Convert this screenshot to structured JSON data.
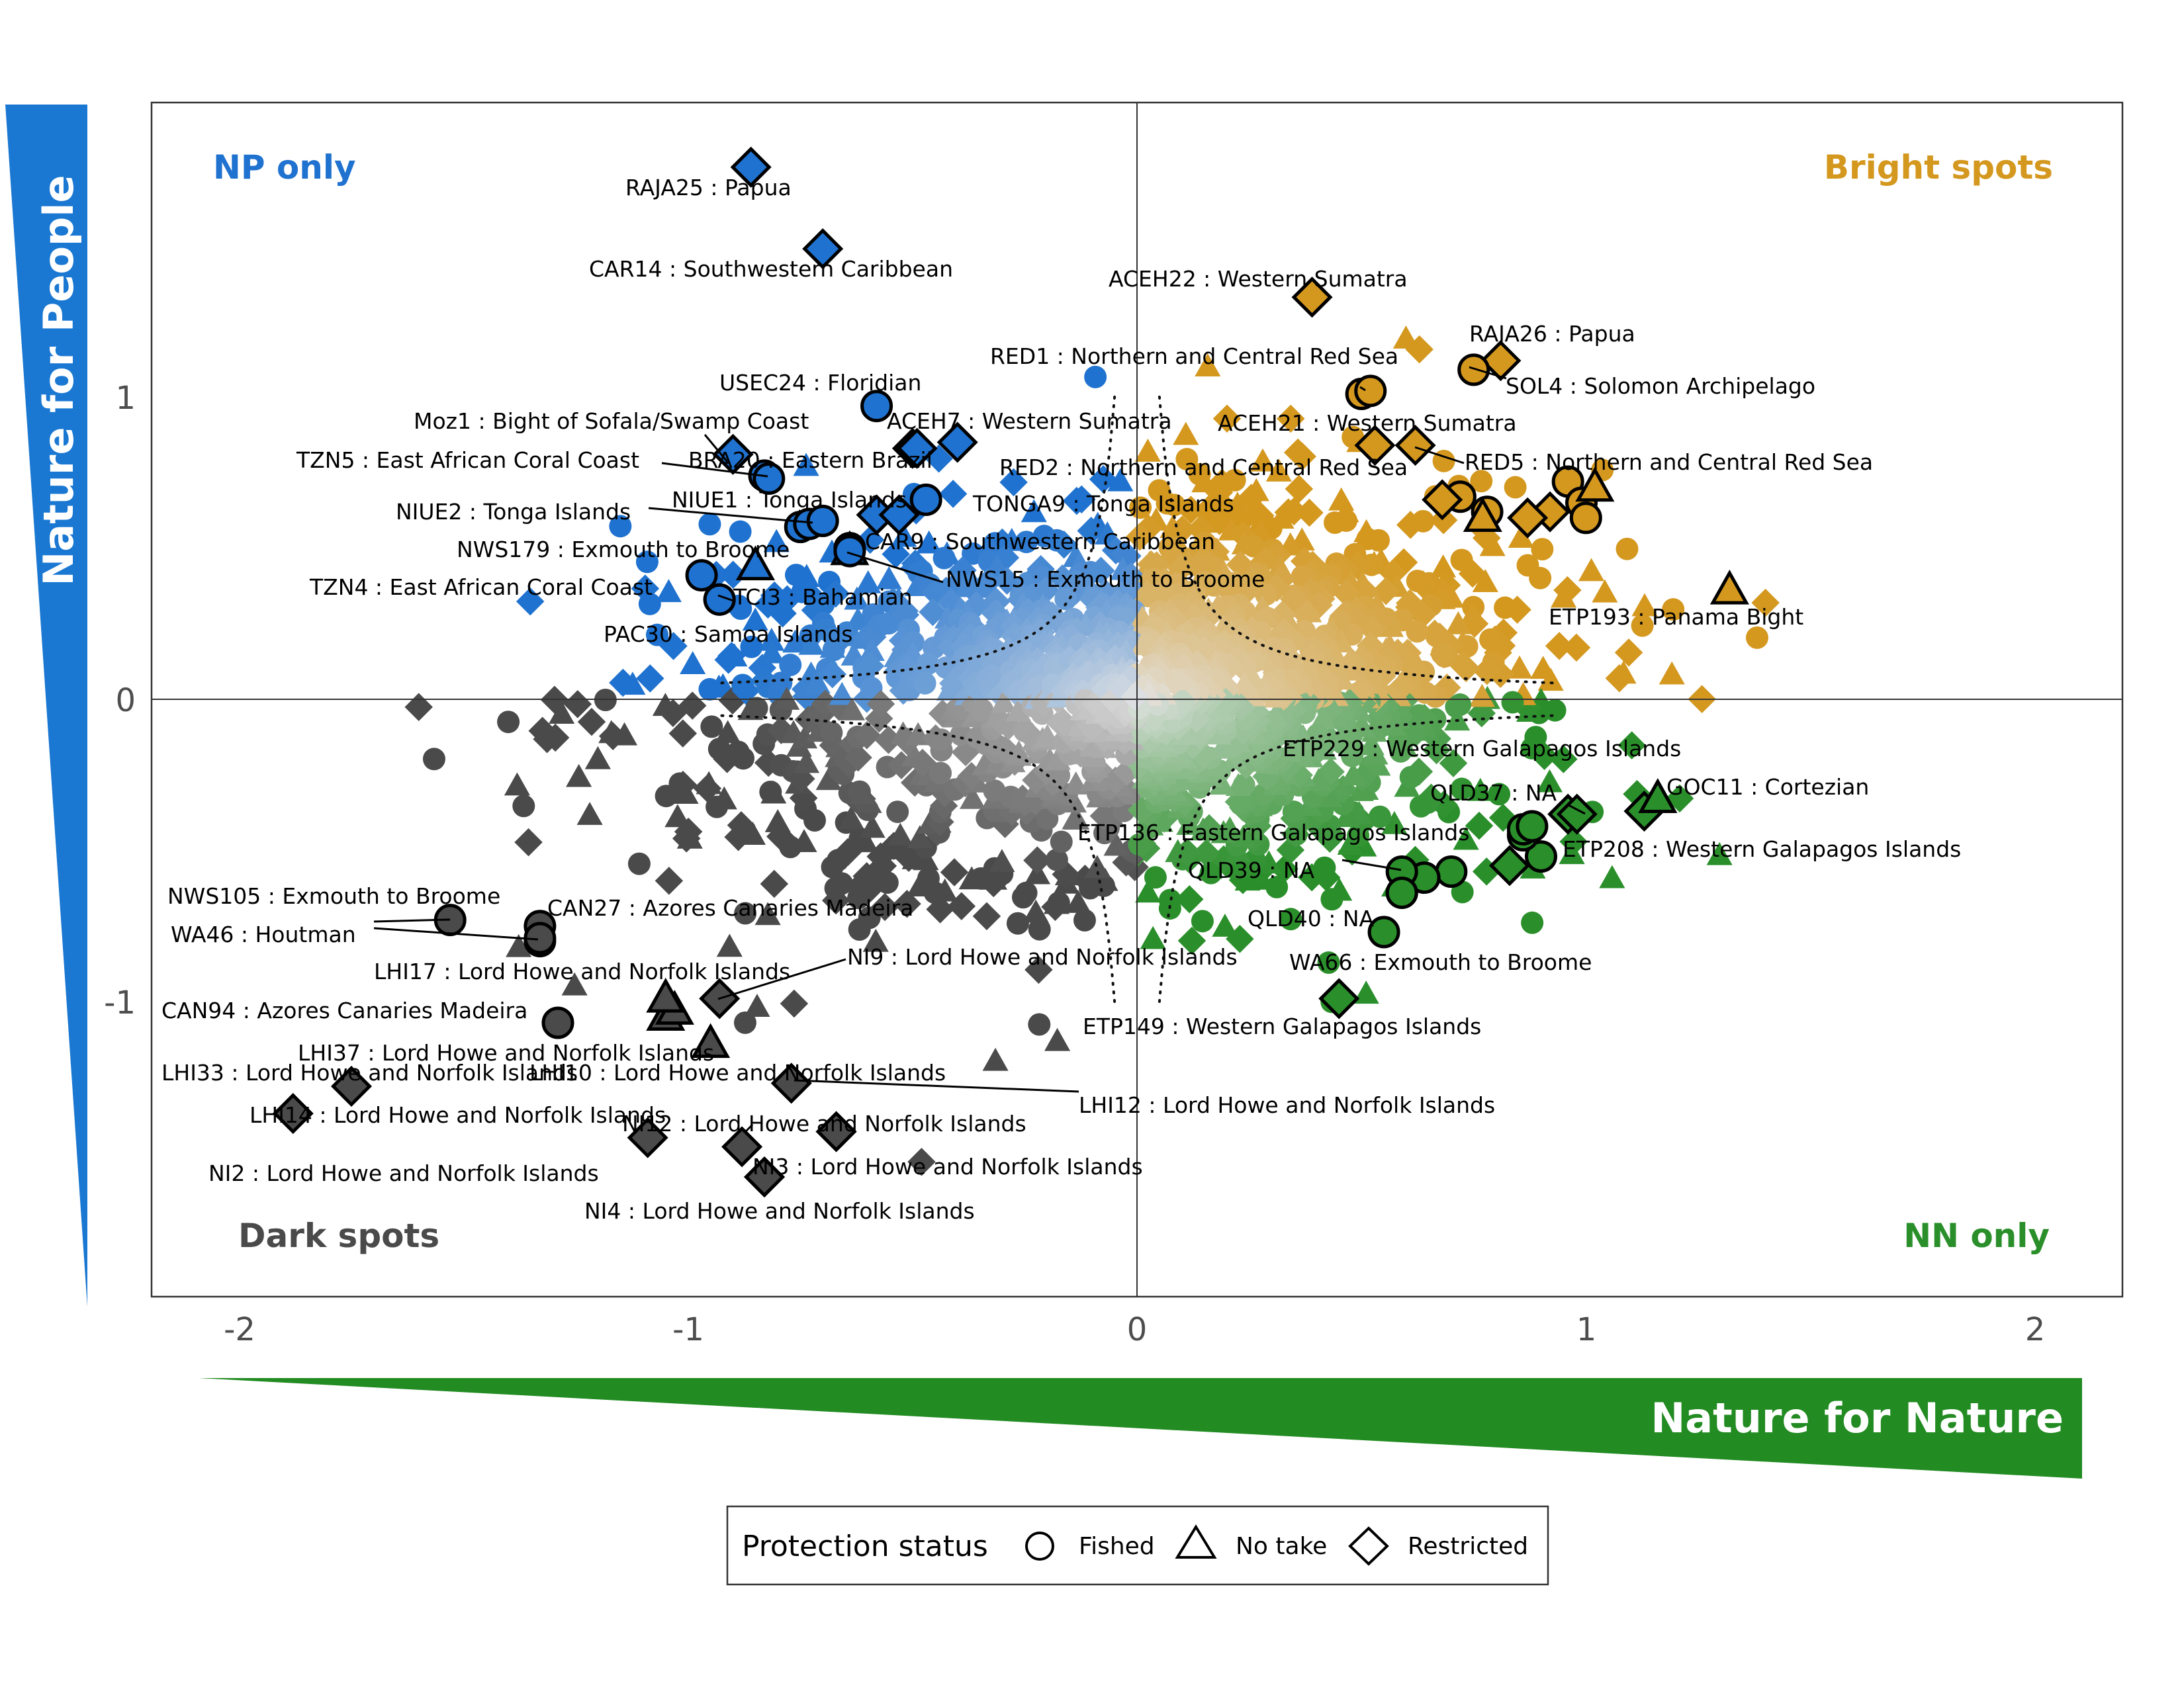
{
  "chart_data": {
    "type": "scatter",
    "title": "",
    "xlabel": "Nature for Nature",
    "ylabel": "Nature for People",
    "xlim": [
      -2.2,
      2.2
    ],
    "ylim": [
      -1.98,
      1.98
    ],
    "x_ticks": [
      "-2",
      "-1",
      "0",
      "1",
      "2"
    ],
    "y_ticks": [
      "1",
      "0",
      "-1"
    ],
    "grid": false,
    "colors": {
      "np_only": "#1f72cf",
      "bright_spots": "#d4981f",
      "dark_spots": "#4a4a4a",
      "nn_only": "#2a8f2a",
      "center": "#e3e3e3"
    },
    "quadrant_labels": {
      "np_only": "NP only",
      "bright_spots": "Bright spots",
      "dark_spots": "Dark spots",
      "nn_only": "NN only"
    },
    "legend": {
      "title": "Protection status",
      "position": "bottom",
      "items": [
        {
          "label": "Fished",
          "shape": "circle"
        },
        {
          "label": "No take",
          "shape": "triangle"
        },
        {
          "label": "Restricted",
          "shape": "diamond"
        }
      ]
    },
    "labeled_points": [
      {
        "label": "RAJA25 : Papua",
        "x": -0.86,
        "y": 1.76,
        "shape": "diamond"
      },
      {
        "label": "CAR14 : Southwestern Caribbean",
        "x": -0.7,
        "y": 1.49,
        "shape": "diamond"
      },
      {
        "label": "ACEH22 : Western Sumatra",
        "x": 0.39,
        "y": 1.33,
        "shape": "diamond"
      },
      {
        "label": "RED1 : Northern and Central Red Sea",
        "x": 0.52,
        "y": 1.02,
        "shape": "circle"
      },
      {
        "label": "RAJA26 : Papua",
        "x": 0.81,
        "y": 1.12,
        "shape": "diamond"
      },
      {
        "label": "SOL4 : Solomon Archipelago",
        "x": 0.75,
        "y": 1.09,
        "shape": "circle"
      },
      {
        "label": "USEC24 : Floridian",
        "x": -0.58,
        "y": 0.97,
        "shape": "circle"
      },
      {
        "label": "Moz1 : Bight of Sofala/Swamp Coast",
        "x": -0.9,
        "y": 0.81,
        "shape": "diamond"
      },
      {
        "label": "ACEH7 : Western Sumatra",
        "x": -0.4,
        "y": 0.85,
        "shape": "diamond"
      },
      {
        "label": "ACEH21 : Western Sumatra",
        "x": 0.53,
        "y": 0.84,
        "shape": "diamond"
      },
      {
        "label": "TZN5 : East African Coral Coast",
        "x": -0.82,
        "y": 0.73,
        "shape": "circle"
      },
      {
        "label": "BRA20 : Eastern Brazil",
        "x": -0.49,
        "y": 0.83,
        "shape": "diamond"
      },
      {
        "label": "RED5 : Northern and Central Red Sea",
        "x": 0.62,
        "y": 0.84,
        "shape": "diamond"
      },
      {
        "label": "RED2 : Northern and Central Red Sea",
        "x": 0.77,
        "y": 0.6,
        "shape": "triangle"
      },
      {
        "label": "NIUE1 : Tonga Islands",
        "x": -0.47,
        "y": 0.66,
        "shape": "circle"
      },
      {
        "label": "TONGA9 : Tonga Islands",
        "x": -0.53,
        "y": 0.61,
        "shape": "diamond"
      },
      {
        "label": "NIUE2 : Tonga Islands",
        "x": -0.7,
        "y": 0.59,
        "shape": "circle"
      },
      {
        "label": "NWS179 : Exmouth to Broome",
        "x": -0.85,
        "y": 0.44,
        "shape": "triangle"
      },
      {
        "label": "CAR9 : Southwestern Caribbean",
        "x": -0.64,
        "y": 0.5,
        "shape": "circle"
      },
      {
        "label": "NWS15 : Exmouth to Broome",
        "x": -0.64,
        "y": 0.49,
        "shape": "circle"
      },
      {
        "label": "TZN4 : East African Coral Coast",
        "x": -0.97,
        "y": 0.41,
        "shape": "circle"
      },
      {
        "label": "TCI3 : Bahamian",
        "x": -0.93,
        "y": 0.33,
        "shape": "circle"
      },
      {
        "label": "PAC30 : Samoa Islands",
        "x": -0.93,
        "y": 0.33,
        "shape": "circle"
      },
      {
        "label": "ETP193 : Panama Bight",
        "x": 1.32,
        "y": 0.36,
        "shape": "triangle"
      },
      {
        "label": "ETP229 : Western Galapagos Islands",
        "x": 0.98,
        "y": -0.38,
        "shape": "diamond"
      },
      {
        "label": "QLD37 : NA",
        "x": 0.86,
        "y": -0.43,
        "shape": "circle"
      },
      {
        "label": "GOC11 : Cortezian",
        "x": 1.13,
        "y": -0.37,
        "shape": "diamond"
      },
      {
        "label": "ETP208 : Western Galapagos Islands",
        "x": 1.16,
        "y": -0.33,
        "shape": "triangle"
      },
      {
        "label": "ETP136 : Eastern Galapagos Islands",
        "x": 0.88,
        "y": -0.42,
        "shape": "circle"
      },
      {
        "label": "QLD39 : NA",
        "x": 0.59,
        "y": -0.57,
        "shape": "circle"
      },
      {
        "label": "QLD40 : NA",
        "x": 0.59,
        "y": -0.64,
        "shape": "circle"
      },
      {
        "label": "WA66 : Exmouth to Broome",
        "x": 0.55,
        "y": -0.77,
        "shape": "circle"
      },
      {
        "label": "ETP149 : Western Galapagos Islands",
        "x": 0.45,
        "y": -0.99,
        "shape": "diamond"
      },
      {
        "label": "NWS105 : Exmouth to Broome",
        "x": -1.53,
        "y": -0.73,
        "shape": "circle"
      },
      {
        "label": "CAN27 : Azores Canaries Madeira",
        "x": -1.33,
        "y": -0.75,
        "shape": "circle"
      },
      {
        "label": "WA46 : Houtman",
        "x": -1.33,
        "y": -0.79,
        "shape": "circle"
      },
      {
        "label": "LHI17 : Lord Howe and Norfolk Islands",
        "x": -1.03,
        "y": -1.03,
        "shape": "triangle"
      },
      {
        "label": "NI9 : Lord Howe and Norfolk Islands",
        "x": -0.93,
        "y": -0.99,
        "shape": "diamond"
      },
      {
        "label": "CAN94 : Azores Canaries Madeira",
        "x": -1.29,
        "y": -1.07,
        "shape": "circle"
      },
      {
        "label": "LHI37 : Lord Howe and Norfolk Islands",
        "x": -1.05,
        "y": -0.99,
        "shape": "triangle"
      },
      {
        "label": "LHI33 : Lord Howe and Norfolk Islands",
        "x": -1.75,
        "y": -1.28,
        "shape": "diamond"
      },
      {
        "label": "LHI10 : Lord Howe and Norfolk Islands",
        "x": -0.95,
        "y": -1.14,
        "shape": "triangle"
      },
      {
        "label": "LHI12 : Lord Howe and Norfolk Islands",
        "x": -0.77,
        "y": -1.27,
        "shape": "diamond"
      },
      {
        "label": "LHI14 : Lord Howe and Norfolk Islands",
        "x": -1.88,
        "y": -1.37,
        "shape": "diamond"
      },
      {
        "label": "NI12 : Lord Howe and Norfolk Islands",
        "x": -0.88,
        "y": -1.48,
        "shape": "diamond"
      },
      {
        "label": "NI3 : Lord Howe and Norfolk Islands",
        "x": -0.67,
        "y": -1.43,
        "shape": "diamond"
      },
      {
        "label": "NI2 : Lord Howe and Norfolk Islands",
        "x": -1.09,
        "y": -1.45,
        "shape": "diamond"
      },
      {
        "label": "NI4 : Lord Howe and Norfolk Islands",
        "x": -0.83,
        "y": -1.58,
        "shape": "diamond"
      }
    ]
  }
}
